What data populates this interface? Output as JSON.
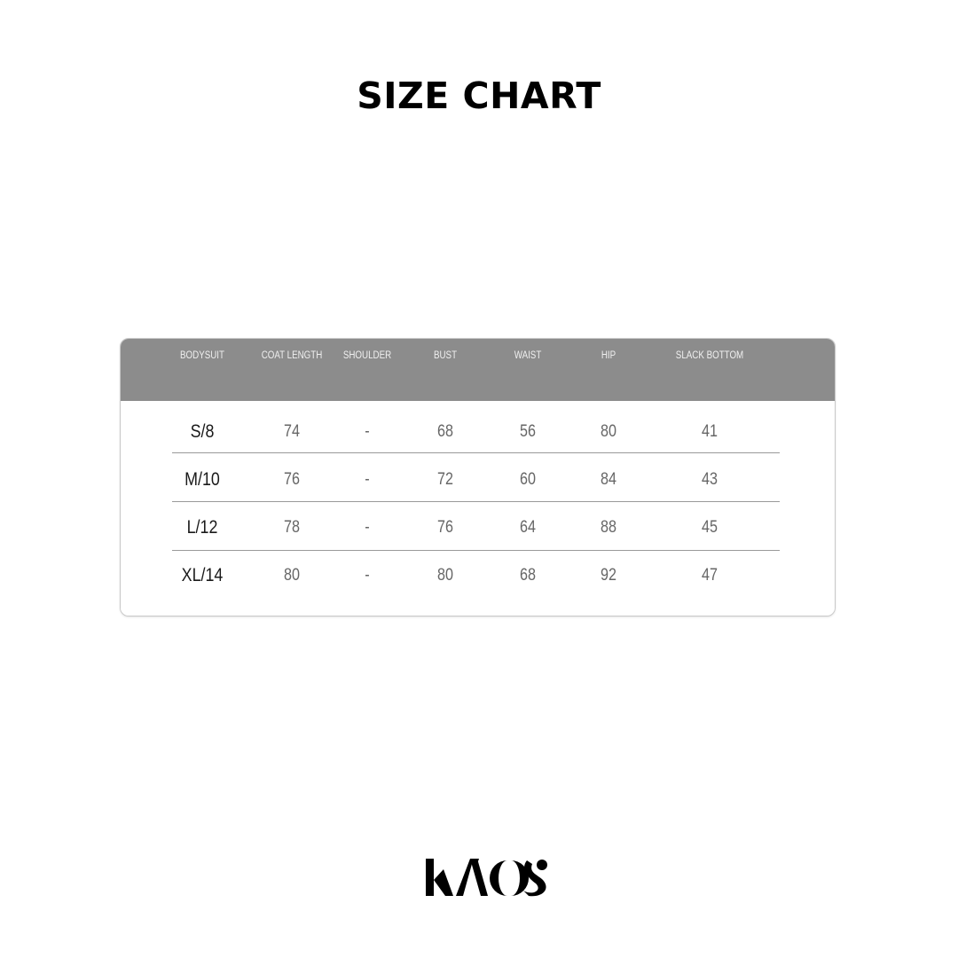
{
  "title": "SIZE CHART",
  "table": {
    "headers": [
      "BODYSUIT",
      "COAT LENGTH",
      "SHOULDER",
      "BUST",
      "WAIST",
      "HIP",
      "SLACK BOTTOM"
    ],
    "rows": [
      [
        "S/8",
        "74",
        "-",
        "68",
        "56",
        "80",
        "41"
      ],
      [
        "M/10",
        "76",
        "-",
        "72",
        "60",
        "84",
        "43"
      ],
      [
        "L/12",
        "78",
        "-",
        "76",
        "64",
        "88",
        "45"
      ],
      [
        "XL/14",
        "80",
        "-",
        "80",
        "68",
        "92",
        "47"
      ]
    ]
  },
  "colors": {
    "header_bg": "#8c8c8c",
    "header_text": "#f0f0f0",
    "size_text": "#1a1a1a",
    "value_text": "#666666"
  },
  "logo": "KAOS"
}
